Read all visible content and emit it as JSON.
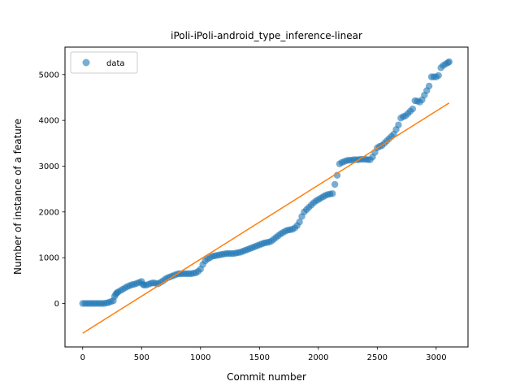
{
  "chart_data": {
    "type": "scatter",
    "title": "iPoli-iPoli-android_type_inference-linear",
    "xlabel": "Commit number",
    "ylabel": "Number of instance of a feature",
    "xlim": [
      -150,
      3270
    ],
    "ylim": [
      -950,
      5600
    ],
    "xticks": [
      0,
      500,
      1000,
      1500,
      2000,
      2500,
      3000
    ],
    "yticks": [
      0,
      1000,
      2000,
      3000,
      4000,
      5000
    ],
    "grid": false,
    "legend": {
      "placement": "top-left",
      "entries": [
        "data"
      ]
    },
    "colors": {
      "data": "#1f77b4",
      "fit": "#ff7f0e"
    },
    "series": [
      {
        "name": "data",
        "kind": "scatter",
        "points": [
          [
            0,
            0
          ],
          [
            20,
            0
          ],
          [
            40,
            0
          ],
          [
            60,
            0
          ],
          [
            80,
            0
          ],
          [
            100,
            0
          ],
          [
            120,
            0
          ],
          [
            140,
            0
          ],
          [
            160,
            0
          ],
          [
            180,
            0
          ],
          [
            200,
            10
          ],
          [
            220,
            20
          ],
          [
            240,
            40
          ],
          [
            260,
            60
          ],
          [
            270,
            150
          ],
          [
            280,
            200
          ],
          [
            290,
            230
          ],
          [
            300,
            250
          ],
          [
            320,
            280
          ],
          [
            340,
            310
          ],
          [
            360,
            340
          ],
          [
            380,
            370
          ],
          [
            400,
            390
          ],
          [
            420,
            410
          ],
          [
            440,
            420
          ],
          [
            460,
            440
          ],
          [
            480,
            460
          ],
          [
            500,
            480
          ],
          [
            510,
            420
          ],
          [
            520,
            400
          ],
          [
            540,
            400
          ],
          [
            560,
            420
          ],
          [
            580,
            440
          ],
          [
            600,
            450
          ],
          [
            620,
            440
          ],
          [
            640,
            430
          ],
          [
            660,
            460
          ],
          [
            680,
            490
          ],
          [
            700,
            530
          ],
          [
            720,
            560
          ],
          [
            740,
            580
          ],
          [
            760,
            600
          ],
          [
            780,
            620
          ],
          [
            800,
            640
          ],
          [
            820,
            650
          ],
          [
            840,
            650
          ],
          [
            860,
            650
          ],
          [
            880,
            650
          ],
          [
            900,
            650
          ],
          [
            920,
            650
          ],
          [
            940,
            660
          ],
          [
            960,
            670
          ],
          [
            980,
            700
          ],
          [
            1000,
            750
          ],
          [
            1020,
            850
          ],
          [
            1040,
            930
          ],
          [
            1060,
            970
          ],
          [
            1080,
            1000
          ],
          [
            1100,
            1030
          ],
          [
            1120,
            1040
          ],
          [
            1140,
            1050
          ],
          [
            1160,
            1060
          ],
          [
            1180,
            1070
          ],
          [
            1200,
            1080
          ],
          [
            1220,
            1090
          ],
          [
            1240,
            1090
          ],
          [
            1260,
            1090
          ],
          [
            1280,
            1090
          ],
          [
            1300,
            1100
          ],
          [
            1320,
            1110
          ],
          [
            1340,
            1120
          ],
          [
            1360,
            1140
          ],
          [
            1380,
            1160
          ],
          [
            1400,
            1180
          ],
          [
            1420,
            1200
          ],
          [
            1440,
            1220
          ],
          [
            1460,
            1240
          ],
          [
            1480,
            1260
          ],
          [
            1500,
            1280
          ],
          [
            1520,
            1300
          ],
          [
            1540,
            1320
          ],
          [
            1560,
            1330
          ],
          [
            1580,
            1340
          ],
          [
            1600,
            1360
          ],
          [
            1620,
            1400
          ],
          [
            1640,
            1440
          ],
          [
            1660,
            1480
          ],
          [
            1680,
            1520
          ],
          [
            1700,
            1550
          ],
          [
            1720,
            1580
          ],
          [
            1740,
            1600
          ],
          [
            1760,
            1610
          ],
          [
            1780,
            1620
          ],
          [
            1800,
            1650
          ],
          [
            1820,
            1700
          ],
          [
            1840,
            1780
          ],
          [
            1860,
            1900
          ],
          [
            1880,
            2000
          ],
          [
            1900,
            2050
          ],
          [
            1920,
            2100
          ],
          [
            1940,
            2150
          ],
          [
            1960,
            2200
          ],
          [
            1980,
            2240
          ],
          [
            2000,
            2270
          ],
          [
            2020,
            2300
          ],
          [
            2040,
            2330
          ],
          [
            2060,
            2360
          ],
          [
            2080,
            2380
          ],
          [
            2100,
            2390
          ],
          [
            2120,
            2400
          ],
          [
            2140,
            2600
          ],
          [
            2160,
            2800
          ],
          [
            2180,
            3050
          ],
          [
            2200,
            3080
          ],
          [
            2220,
            3100
          ],
          [
            2240,
            3120
          ],
          [
            2260,
            3130
          ],
          [
            2280,
            3130
          ],
          [
            2300,
            3140
          ],
          [
            2320,
            3140
          ],
          [
            2340,
            3140
          ],
          [
            2360,
            3150
          ],
          [
            2380,
            3150
          ],
          [
            2400,
            3150
          ],
          [
            2420,
            3140
          ],
          [
            2440,
            3140
          ],
          [
            2460,
            3200
          ],
          [
            2480,
            3300
          ],
          [
            2500,
            3400
          ],
          [
            2520,
            3430
          ],
          [
            2540,
            3450
          ],
          [
            2560,
            3500
          ],
          [
            2580,
            3550
          ],
          [
            2600,
            3600
          ],
          [
            2620,
            3650
          ],
          [
            2640,
            3700
          ],
          [
            2660,
            3800
          ],
          [
            2680,
            3900
          ],
          [
            2700,
            4050
          ],
          [
            2720,
            4080
          ],
          [
            2740,
            4100
          ],
          [
            2760,
            4150
          ],
          [
            2780,
            4200
          ],
          [
            2800,
            4250
          ],
          [
            2820,
            4430
          ],
          [
            2840,
            4420
          ],
          [
            2860,
            4400
          ],
          [
            2880,
            4450
          ],
          [
            2900,
            4550
          ],
          [
            2920,
            4650
          ],
          [
            2940,
            4750
          ],
          [
            2960,
            4950
          ],
          [
            2980,
            4950
          ],
          [
            3000,
            4950
          ],
          [
            3020,
            4980
          ],
          [
            3040,
            5150
          ],
          [
            3060,
            5200
          ],
          [
            3080,
            5230
          ],
          [
            3100,
            5260
          ],
          [
            3110,
            5280
          ]
        ]
      },
      {
        "name": "",
        "kind": "line",
        "points": [
          [
            0,
            -650
          ],
          [
            3110,
            4380
          ]
        ]
      }
    ]
  }
}
